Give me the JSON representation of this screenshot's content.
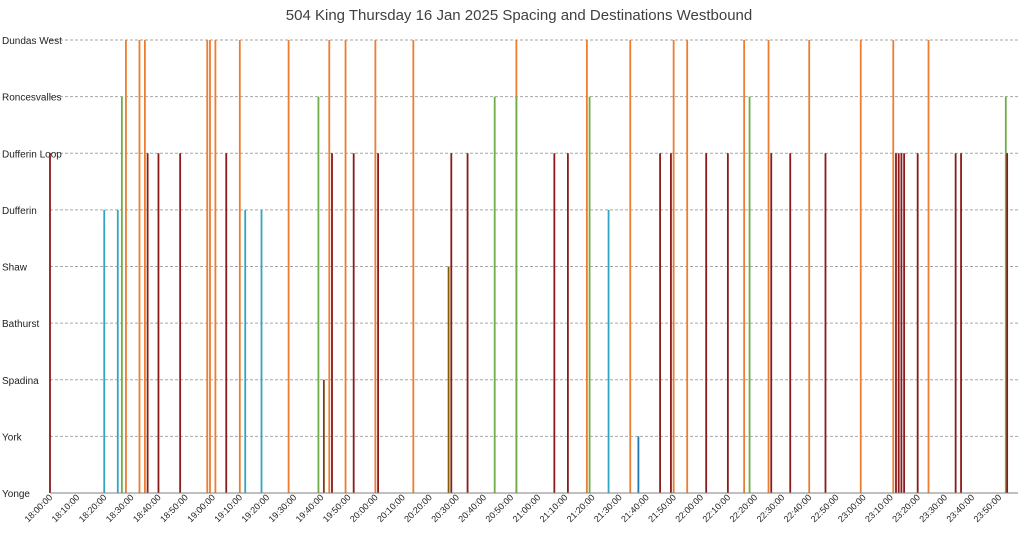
{
  "chart_data": {
    "type": "bar",
    "title": "504 King Thursday 16 Jan 2025 Spacing and Destinations Westbound",
    "xlabel": "",
    "ylabel": "",
    "x_unit": "time of day",
    "x_range": [
      "18:00:00",
      "23:57:00"
    ],
    "y_categories": [
      "Yonge",
      "York",
      "Spadina",
      "Bathurst",
      "Shaw",
      "Dufferin",
      "Dufferin Loop",
      "Roncesvalles",
      "Dundas West"
    ],
    "x_ticks": [
      "18:00:00",
      "18:10:00",
      "18:20:00",
      "18:30:00",
      "18:40:00",
      "18:50:00",
      "19:00:00",
      "19:10:00",
      "19:20:00",
      "19:30:00",
      "19:40:00",
      "19:50:00",
      "20:00:00",
      "20:10:00",
      "20:20:00",
      "20:30:00",
      "20:40:00",
      "20:50:00",
      "21:00:00",
      "21:10:00",
      "21:20:00",
      "21:30:00",
      "21:40:00",
      "21:50:00",
      "22:00:00",
      "22:10:00",
      "22:20:00",
      "22:30:00",
      "22:40:00",
      "22:50:00",
      "23:00:00",
      "23:10:00",
      "23:20:00",
      "23:30:00",
      "23:40:00",
      "23:50:00"
    ],
    "grid": true,
    "legend": "none",
    "colors": {
      "Dundas West": "#ed7d31",
      "Roncesvalles": "#70ad47",
      "Dufferin Loop": "#8b1a1a",
      "Dufferin": "#2fa6c4",
      "Shaw": "#7f6000",
      "Spadina": "#843c0c",
      "York": "#1f77b4"
    },
    "series": [
      {
        "destination": "Dundas West",
        "times": [
          "18:28:00",
          "18:33:00",
          "18:35:00",
          "18:58:00",
          "18:59:00",
          "19:01:00",
          "19:10:00",
          "19:28:00",
          "19:43:00",
          "19:49:00",
          "20:00:00",
          "20:14:00",
          "20:52:00",
          "21:18:00",
          "21:34:00",
          "21:50:00",
          "21:55:00",
          "22:16:00",
          "22:25:00",
          "22:40:00",
          "22:59:00",
          "23:11:00",
          "23:24:00"
        ]
      },
      {
        "destination": "Roncesvalles",
        "times": [
          "18:26:30",
          "19:39:00",
          "20:44:00",
          "20:52:00",
          "21:19:00",
          "22:18:00",
          "23:52:30"
        ]
      },
      {
        "destination": "Dufferin Loop",
        "times": [
          "18:00:00",
          "18:36:00",
          "18:40:00",
          "18:48:00",
          "19:05:00",
          "19:44:00",
          "19:52:00",
          "20:01:00",
          "20:28:00",
          "20:34:00",
          "21:06:00",
          "21:11:00",
          "21:45:00",
          "21:49:00",
          "22:02:00",
          "22:10:00",
          "22:26:00",
          "22:33:00",
          "22:46:00",
          "23:12:00",
          "23:13:00",
          "23:14:00",
          "23:15:00",
          "23:20:00",
          "23:34:00",
          "23:36:00",
          "23:53:00"
        ]
      },
      {
        "destination": "Dufferin",
        "times": [
          "18:20:00",
          "18:25:00",
          "19:12:00",
          "19:18:00",
          "21:26:00"
        ]
      },
      {
        "destination": "Shaw",
        "times": [
          "20:27:00"
        ]
      },
      {
        "destination": "Spadina",
        "times": [
          "19:41:00"
        ]
      },
      {
        "destination": "York",
        "times": [
          "21:37:00"
        ]
      }
    ]
  }
}
